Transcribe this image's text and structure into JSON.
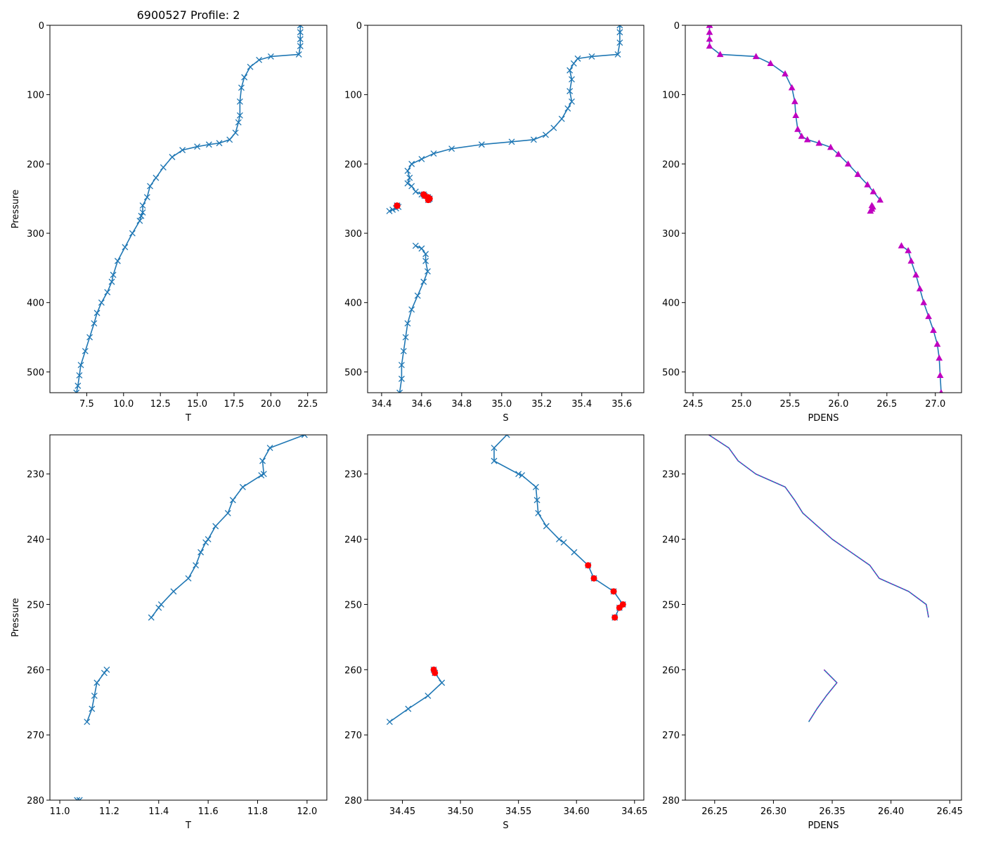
{
  "colors": {
    "line": "#1f77b4",
    "marker": "#1f77b4",
    "flag": "#ff0000",
    "dens_marker": "#c000c0"
  },
  "chart_data": [
    {
      "id": "t-full",
      "type": "line",
      "title": "6900527 Profile: 2",
      "xlabel": "T",
      "ylabel": "Pressure",
      "xlim": [
        5.0,
        23.8
      ],
      "ylim": [
        530,
        0
      ],
      "y_inverted": true,
      "xticks": [
        7.5,
        10.0,
        12.5,
        15.0,
        17.5,
        20.0,
        22.5
      ],
      "xtick_labels": [
        "7.5",
        "10.0",
        "12.5",
        "15.0",
        "17.5",
        "20.0",
        "22.5"
      ],
      "yticks": [
        0,
        100,
        200,
        300,
        400,
        500
      ],
      "ytick_labels": [
        "0",
        "100",
        "200",
        "300",
        "400",
        "500"
      ],
      "marker": "x",
      "series": [
        {
          "name": "T",
          "x": [
            22.0,
            22.0,
            22.0,
            22.0,
            21.9,
            20.0,
            19.2,
            18.6,
            18.2,
            18.0,
            17.9,
            17.9,
            17.8,
            17.6,
            17.2,
            16.5,
            15.8,
            15.0,
            14.0,
            13.3,
            12.7,
            12.2,
            11.8,
            11.6,
            11.3,
            11.3,
            11.2,
            11.1,
            10.6,
            10.1,
            9.6,
            9.3,
            9.2,
            8.9,
            8.5,
            8.2,
            8.0,
            7.7,
            7.4,
            7.1,
            7.0,
            6.9,
            6.8
          ],
          "y": [
            0,
            10,
            20,
            30,
            42,
            45,
            50,
            60,
            75,
            90,
            110,
            130,
            140,
            155,
            165,
            170,
            172,
            175,
            180,
            190,
            205,
            220,
            232,
            248,
            260,
            270,
            275,
            282,
            300,
            320,
            340,
            360,
            370,
            385,
            400,
            415,
            430,
            450,
            470,
            490,
            505,
            520,
            530
          ]
        }
      ]
    },
    {
      "id": "s-full",
      "type": "line",
      "title": "",
      "xlabel": "S",
      "ylabel": "",
      "xlim": [
        34.33,
        35.71
      ],
      "ylim": [
        530,
        0
      ],
      "y_inverted": true,
      "xticks": [
        34.4,
        34.6,
        34.8,
        35.0,
        35.2,
        35.4,
        35.6
      ],
      "xtick_labels": [
        "34.4",
        "34.6",
        "34.8",
        "35.0",
        "35.2",
        "35.4",
        "35.6"
      ],
      "yticks": [
        0,
        100,
        200,
        300,
        400,
        500
      ],
      "ytick_labels": [
        "0",
        "100",
        "200",
        "300",
        "400",
        "500"
      ],
      "marker": "x",
      "series": [
        {
          "name": "S upper",
          "x": [
            35.59,
            35.59,
            35.59,
            35.58,
            35.45,
            35.38,
            35.36,
            35.34,
            35.35,
            35.34,
            35.35,
            35.33,
            35.3,
            35.26,
            35.22,
            35.16,
            35.05,
            34.9,
            34.75,
            34.66,
            34.6,
            34.55,
            34.53,
            34.54,
            34.53,
            34.55,
            34.57,
            34.6
          ],
          "y": [
            0,
            10,
            25,
            42,
            45,
            48,
            55,
            65,
            78,
            95,
            110,
            120,
            135,
            148,
            158,
            165,
            168,
            172,
            178,
            185,
            193,
            200,
            210,
            220,
            228,
            232,
            240,
            244
          ]
        },
        {
          "name": "S flagged",
          "x": [
            34.61,
            34.615,
            34.632,
            34.64,
            34.637,
            34.633
          ],
          "y": [
            244,
            246,
            248,
            250,
            250.5,
            252
          ]
        },
        {
          "name": "S mid",
          "x": [
            34.477,
            34.478,
            34.484,
            34.472,
            34.455,
            34.439
          ],
          "y": [
            260,
            260.5,
            262,
            264,
            266,
            268
          ]
        },
        {
          "name": "S lower",
          "x": [
            34.57,
            34.6,
            34.62,
            34.62,
            34.63,
            34.61,
            34.58,
            34.55,
            34.53,
            34.52,
            34.51,
            34.5,
            34.5,
            34.49
          ],
          "y": [
            318,
            322,
            330,
            340,
            355,
            370,
            390,
            410,
            430,
            450,
            470,
            490,
            510,
            530
          ]
        }
      ],
      "flag_points": {
        "x": [
          34.61,
          34.615,
          34.632,
          34.64,
          34.637,
          34.633,
          34.477,
          34.478
        ],
        "y": [
          244,
          246,
          248,
          250,
          250.5,
          252,
          260,
          260.5
        ]
      }
    },
    {
      "id": "pdens-full",
      "type": "line",
      "title": "",
      "xlabel": "PDENS",
      "ylabel": "",
      "xlim": [
        24.42,
        27.27
      ],
      "ylim": [
        530,
        0
      ],
      "y_inverted": true,
      "xticks": [
        24.5,
        25.0,
        25.5,
        26.0,
        26.5,
        27.0
      ],
      "xtick_labels": [
        "24.5",
        "25.0",
        "25.5",
        "26.0",
        "26.5",
        "27.0"
      ],
      "yticks": [
        0,
        100,
        200,
        300,
        400,
        500
      ],
      "ytick_labels": [
        "0",
        "100",
        "200",
        "300",
        "400",
        "500"
      ],
      "marker": "triangle",
      "series": [
        {
          "name": "PDENS upper",
          "x": [
            24.67,
            24.67,
            24.67,
            24.67,
            24.78,
            25.15,
            25.3,
            25.45,
            25.52,
            25.55,
            25.56,
            25.58,
            25.62,
            25.68,
            25.8,
            25.92,
            26.0,
            26.1,
            26.2,
            26.3,
            26.36,
            26.43
          ],
          "y": [
            0,
            10,
            20,
            30,
            42,
            45,
            55,
            70,
            90,
            110,
            130,
            150,
            160,
            165,
            170,
            176,
            186,
            200,
            215,
            230,
            240,
            252
          ]
        },
        {
          "name": "PDENS mid",
          "x": [
            26.345,
            26.355,
            26.345,
            26.33
          ],
          "y": [
            260,
            262,
            265,
            268
          ]
        },
        {
          "name": "PDENS lower",
          "x": [
            26.65,
            26.72,
            26.75,
            26.8,
            26.84,
            26.88,
            26.93,
            26.98,
            27.02,
            27.04,
            27.05,
            27.06
          ],
          "y": [
            318,
            325,
            340,
            360,
            380,
            400,
            420,
            440,
            460,
            480,
            505,
            530
          ]
        }
      ]
    },
    {
      "id": "t-zoom",
      "type": "line",
      "title": "",
      "xlabel": "T",
      "ylabel": "Pressure",
      "xlim": [
        10.96,
        12.08
      ],
      "ylim": [
        280,
        224
      ],
      "y_inverted": true,
      "xticks": [
        11.0,
        11.2,
        11.4,
        11.6,
        11.8,
        12.0
      ],
      "xtick_labels": [
        "11.0",
        "11.2",
        "11.4",
        "11.6",
        "11.8",
        "12.0"
      ],
      "yticks": [
        230,
        240,
        250,
        260,
        270,
        280
      ],
      "ytick_labels": [
        "230",
        "240",
        "250",
        "260",
        "270",
        "280"
      ],
      "marker": "x",
      "series": [
        {
          "name": "T upper",
          "x": [
            11.99,
            11.85,
            11.82,
            11.825,
            11.815,
            11.74,
            11.7,
            11.68,
            11.63,
            11.6,
            11.59,
            11.57,
            11.55,
            11.52,
            11.46,
            11.41,
            11.4,
            11.37
          ],
          "y": [
            224,
            226,
            228,
            230,
            230.2,
            232,
            234,
            236,
            238,
            240,
            240.5,
            242,
            244,
            246,
            248,
            250,
            250.5,
            252
          ]
        },
        {
          "name": "T mid",
          "x": [
            11.19,
            11.18,
            11.15,
            11.14,
            11.13,
            11.11
          ],
          "y": [
            260,
            260.5,
            262,
            264,
            266,
            268
          ]
        },
        {
          "name": "T deep",
          "x": [
            11.07,
            11.08
          ],
          "y": [
            280,
            280
          ]
        }
      ]
    },
    {
      "id": "s-zoom",
      "type": "line",
      "title": "",
      "xlabel": "S",
      "ylabel": "",
      "xlim": [
        34.42,
        34.658
      ],
      "ylim": [
        280,
        224
      ],
      "y_inverted": true,
      "xticks": [
        34.45,
        34.5,
        34.55,
        34.6,
        34.65
      ],
      "xtick_labels": [
        "34.45",
        "34.50",
        "34.55",
        "34.60",
        "34.65"
      ],
      "yticks": [
        230,
        240,
        250,
        260,
        270,
        280
      ],
      "ytick_labels": [
        "230",
        "240",
        "250",
        "260",
        "270",
        "280"
      ],
      "marker": "x",
      "series": [
        {
          "name": "S upper",
          "x": [
            34.54,
            34.529,
            34.529,
            34.55,
            34.553,
            34.565,
            34.566,
            34.567,
            34.574,
            34.585,
            34.589,
            34.598,
            34.61,
            34.615,
            34.632,
            34.64,
            34.637,
            34.633
          ],
          "y": [
            224,
            226,
            228,
            230,
            230.2,
            232,
            234,
            236,
            238,
            240,
            240.5,
            242,
            244,
            246,
            248,
            250,
            250.5,
            252
          ]
        },
        {
          "name": "S mid",
          "x": [
            34.477,
            34.478,
            34.484,
            34.472,
            34.455,
            34.439
          ],
          "y": [
            260,
            260.5,
            262,
            264,
            266,
            268
          ]
        }
      ],
      "flag_points": {
        "x": [
          34.61,
          34.615,
          34.632,
          34.64,
          34.637,
          34.633,
          34.477,
          34.478
        ],
        "y": [
          244,
          246,
          248,
          250,
          250.5,
          252,
          260,
          260.5
        ]
      }
    },
    {
      "id": "pdens-zoom",
      "type": "line",
      "title": "",
      "xlabel": "PDENS",
      "ylabel": "",
      "xlim": [
        26.225,
        26.46
      ],
      "ylim": [
        280,
        224
      ],
      "y_inverted": true,
      "xticks": [
        26.25,
        26.3,
        26.35,
        26.4,
        26.45
      ],
      "xtick_labels": [
        "26.25",
        "26.30",
        "26.35",
        "26.40",
        "26.45"
      ],
      "yticks": [
        230,
        240,
        250,
        260,
        270,
        280
      ],
      "ytick_labels": [
        "230",
        "240",
        "250",
        "260",
        "270",
        "280"
      ],
      "marker": "none",
      "series": [
        {
          "name": "PDENS upper",
          "x": [
            26.245,
            26.262,
            26.27,
            26.285,
            26.31,
            26.318,
            26.325,
            26.35,
            26.366,
            26.382,
            26.39,
            26.415,
            26.43,
            26.432
          ],
          "y": [
            224,
            226,
            228,
            230,
            232,
            234,
            236,
            240,
            242,
            244,
            246,
            248,
            250,
            252
          ]
        },
        {
          "name": "PDENS mid",
          "x": [
            26.343,
            26.354,
            26.345,
            26.337,
            26.33
          ],
          "y": [
            260,
            262,
            264,
            266,
            268
          ]
        }
      ]
    }
  ]
}
